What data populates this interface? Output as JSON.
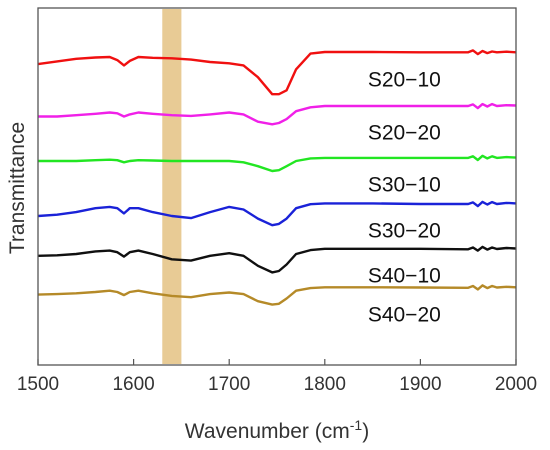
{
  "chart_data": {
    "type": "line",
    "xlabel": "Wavenumber (cm",
    "xlabel_superscript": "-1",
    "xlabel_suffix": ")",
    "ylabel": "Transmittance",
    "xlim": [
      1500,
      2000
    ],
    "xticks": [
      1500,
      1600,
      1700,
      1800,
      1900,
      2000
    ],
    "xtick_labels": [
      "1500",
      "1600",
      "1700",
      "1800",
      "1900",
      "2000"
    ],
    "y_ticks_shown": false,
    "grid": false,
    "highlight_band": {
      "x_start": 1630,
      "x_end": 1650,
      "color": "#d9a84e"
    },
    "series": [
      {
        "name": "S20−10",
        "color": "#f01010",
        "label_x": 1845,
        "x": [
          1500,
          1520,
          1540,
          1560,
          1575,
          1583,
          1590,
          1596,
          1605,
          1620,
          1640,
          1660,
          1680,
          1700,
          1715,
          1730,
          1745,
          1752,
          1760,
          1770,
          1785,
          1800,
          1850,
          1900,
          1950,
          1955,
          1960,
          1965,
          1970,
          1975,
          1980,
          1990,
          2000
        ],
        "y": [
          0.13,
          0.12,
          0.11,
          0.105,
          0.103,
          0.115,
          0.135,
          0.118,
          0.103,
          0.106,
          0.108,
          0.113,
          0.122,
          0.127,
          0.135,
          0.18,
          0.245,
          0.245,
          0.23,
          0.15,
          0.09,
          0.084,
          0.084,
          0.085,
          0.085,
          0.078,
          0.092,
          0.08,
          0.088,
          0.082,
          0.085,
          0.083,
          0.085
        ]
      },
      {
        "name": "S20−20",
        "color": "#f020e8",
        "label_x": 1845,
        "x": [
          1500,
          1520,
          1540,
          1560,
          1575,
          1583,
          1590,
          1596,
          1605,
          1620,
          1640,
          1660,
          1680,
          1700,
          1715,
          1730,
          1745,
          1752,
          1760,
          1770,
          1785,
          1800,
          1850,
          1900,
          1950,
          1955,
          1960,
          1965,
          1970,
          1975,
          1980,
          1990,
          2000
        ],
        "y": [
          0.33,
          0.33,
          0.325,
          0.32,
          0.315,
          0.318,
          0.33,
          0.322,
          0.315,
          0.32,
          0.325,
          0.328,
          0.322,
          0.315,
          0.322,
          0.35,
          0.36,
          0.355,
          0.34,
          0.31,
          0.295,
          0.29,
          0.29,
          0.29,
          0.29,
          0.284,
          0.298,
          0.283,
          0.292,
          0.283,
          0.29,
          0.287,
          0.288
        ]
      },
      {
        "name": "S30−10",
        "color": "#22e622",
        "label_x": 1845,
        "x": [
          1500,
          1520,
          1540,
          1560,
          1575,
          1583,
          1590,
          1596,
          1605,
          1620,
          1640,
          1660,
          1680,
          1700,
          1715,
          1730,
          1745,
          1752,
          1760,
          1770,
          1785,
          1800,
          1850,
          1900,
          1950,
          1955,
          1960,
          1965,
          1970,
          1975,
          1980,
          1990,
          2000
        ],
        "y": [
          0.5,
          0.5,
          0.5,
          0.497,
          0.495,
          0.497,
          0.505,
          0.5,
          0.497,
          0.498,
          0.5,
          0.5,
          0.5,
          0.5,
          0.505,
          0.52,
          0.538,
          0.535,
          0.52,
          0.5,
          0.49,
          0.488,
          0.488,
          0.488,
          0.488,
          0.482,
          0.496,
          0.48,
          0.49,
          0.482,
          0.488,
          0.485,
          0.487
        ]
      },
      {
        "name": "S30−20",
        "color": "#1a22d8",
        "label_x": 1845,
        "x": [
          1500,
          1520,
          1540,
          1560,
          1575,
          1583,
          1590,
          1596,
          1605,
          1620,
          1640,
          1660,
          1680,
          1700,
          1715,
          1730,
          1745,
          1752,
          1760,
          1770,
          1785,
          1800,
          1850,
          1900,
          1950,
          1955,
          1960,
          1965,
          1970,
          1975,
          1980,
          1990,
          2000
        ],
        "y": [
          0.71,
          0.705,
          0.695,
          0.68,
          0.675,
          0.68,
          0.7,
          0.68,
          0.68,
          0.695,
          0.71,
          0.718,
          0.695,
          0.675,
          0.685,
          0.72,
          0.745,
          0.74,
          0.72,
          0.68,
          0.665,
          0.662,
          0.662,
          0.664,
          0.664,
          0.658,
          0.672,
          0.656,
          0.666,
          0.657,
          0.664,
          0.66,
          0.662
        ]
      },
      {
        "name": "S40−10",
        "color": "#101010",
        "label_x": 1845,
        "x": [
          1500,
          1520,
          1540,
          1560,
          1575,
          1583,
          1590,
          1596,
          1605,
          1620,
          1640,
          1660,
          1680,
          1700,
          1715,
          1730,
          1745,
          1752,
          1760,
          1770,
          1785,
          1800,
          1850,
          1900,
          1950,
          1955,
          1960,
          1965,
          1970,
          1975,
          1980,
          1990,
          2000
        ],
        "y": [
          0.862,
          0.86,
          0.855,
          0.845,
          0.842,
          0.848,
          0.865,
          0.848,
          0.842,
          0.855,
          0.875,
          0.88,
          0.862,
          0.852,
          0.862,
          0.9,
          0.925,
          0.92,
          0.895,
          0.855,
          0.84,
          0.835,
          0.835,
          0.835,
          0.837,
          0.83,
          0.842,
          0.828,
          0.838,
          0.83,
          0.836,
          0.832,
          0.834
        ]
      },
      {
        "name": "S40−20",
        "color": "#b58a28",
        "label_x": 1845,
        "x": [
          1500,
          1520,
          1540,
          1560,
          1575,
          1583,
          1590,
          1596,
          1605,
          1620,
          1640,
          1660,
          1680,
          1700,
          1715,
          1730,
          1745,
          1752,
          1760,
          1770,
          1785,
          1800,
          1850,
          1900,
          1950,
          1955,
          1960,
          1965,
          1970,
          1975,
          1980,
          1990,
          2000
        ],
        "y": [
          1.01,
          1.008,
          1.005,
          1.0,
          0.995,
          1.0,
          1.012,
          1.0,
          0.995,
          1.005,
          1.015,
          1.02,
          1.008,
          1.002,
          1.008,
          1.035,
          1.048,
          1.045,
          1.025,
          0.995,
          0.985,
          0.982,
          0.982,
          0.983,
          0.984,
          0.977,
          0.99,
          0.975,
          0.985,
          0.977,
          0.983,
          0.98,
          0.982
        ]
      }
    ]
  }
}
